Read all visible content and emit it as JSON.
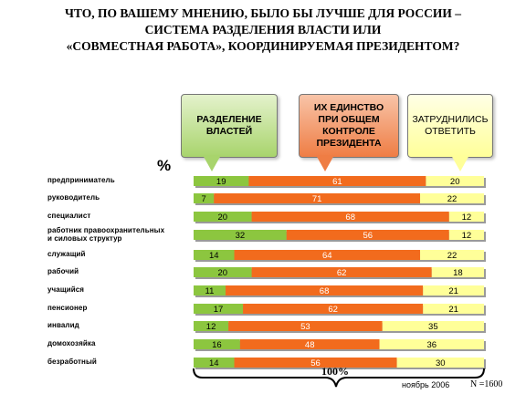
{
  "title_lines": [
    "ЧТО, ПО ВАШЕМУ МНЕНИЮ, БЫЛО БЫ ЛУЧШЕ ДЛЯ РОССИИ –",
    "СИСТЕМА РАЗДЕЛЕНИЯ ВЛАСТИ ИЛИ",
    "«СОВМЕСТНАЯ РАБОТА», КООРДИНИРУЕМАЯ ПРЕЗИДЕНТОМ?"
  ],
  "legend": {
    "separation": [
      "РАЗДЕЛЕНИЕ",
      "ВЛАСТЕЙ"
    ],
    "unity": [
      "ИХ ЕДИНСТВО",
      "ПРИ ОБЩЕМ",
      "КОНТРОЛЕ",
      "ПРЕЗИДЕНТА"
    ],
    "difficult": [
      "ЗАТРУДНИЛИСЬ",
      "ОТВЕТИТЬ"
    ]
  },
  "percent_label": "%",
  "total_label": "100%",
  "date_label": "ноябрь 2006",
  "sample_label": "N =1600",
  "colors": {
    "separation": "#8cc63f",
    "unity": "#f26b1d",
    "difficult": "#ffff99",
    "separation_callout": "#c8e6a0",
    "unity_callout": "#f4a07a",
    "difficult_callout": "#ffffd0"
  },
  "chart_data": {
    "type": "bar",
    "orientation": "horizontal",
    "stacked": true,
    "categories": [
      [
        "предприниматель"
      ],
      [
        "руководитель"
      ],
      [
        "специалист"
      ],
      [
        "работник правоохранительных",
        "и силовых структур"
      ],
      [
        "служащий"
      ],
      [
        "рабочий"
      ],
      [
        "учащийся"
      ],
      [
        "пенсионер"
      ],
      [
        "инвалид"
      ],
      [
        "домохозяйка"
      ],
      [
        "безработный"
      ]
    ],
    "series": [
      {
        "key": "separation",
        "values": [
          19,
          7,
          20,
          32,
          14,
          20,
          11,
          17,
          12,
          16,
          14
        ]
      },
      {
        "key": "unity",
        "values": [
          61,
          71,
          68,
          56,
          64,
          62,
          68,
          62,
          53,
          48,
          56
        ]
      },
      {
        "key": "difficult",
        "values": [
          20,
          22,
          12,
          12,
          22,
          18,
          21,
          21,
          35,
          36,
          30
        ]
      }
    ],
    "xlim": [
      0,
      100
    ]
  }
}
